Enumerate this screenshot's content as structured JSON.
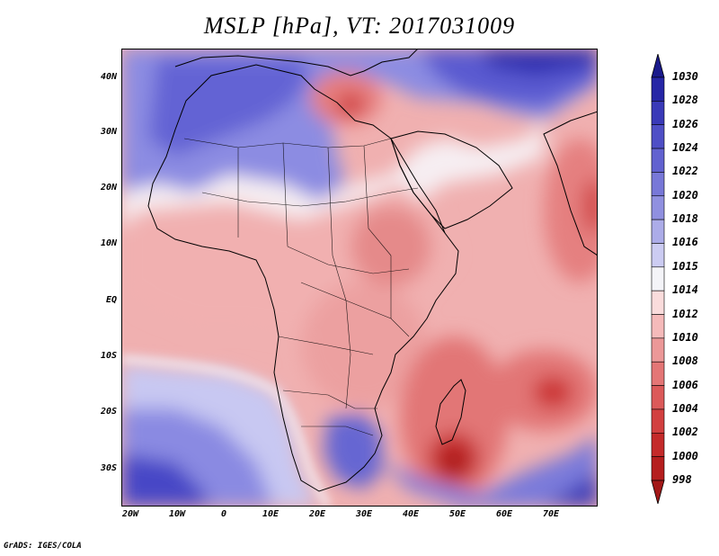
{
  "title": "MSLP [hPa], VT: 2017031009",
  "credit": "GrADS: IGES/COLA",
  "axes": {
    "lat_labels": [
      "40N",
      "30N",
      "20N",
      "10N",
      "EQ",
      "10S",
      "20S",
      "30S"
    ],
    "lon_labels": [
      "20W",
      "10W",
      "0",
      "10E",
      "20E",
      "30E",
      "40E",
      "50E",
      "60E",
      "70E"
    ]
  },
  "colorbar": {
    "levels": [
      "1030",
      "1028",
      "1026",
      "1024",
      "1022",
      "1020",
      "1018",
      "1016",
      "1015",
      "1014",
      "1012",
      "1010",
      "1008",
      "1006",
      "1004",
      "1002",
      "1000",
      "998"
    ],
    "colors": [
      "#1a1a8c",
      "#2626a6",
      "#3a3ab8",
      "#4f4fc6",
      "#6262d0",
      "#7878d8",
      "#9090e0",
      "#acace8",
      "#ccccf2",
      "#f4f4f8",
      "#fadcdc",
      "#f5baba",
      "#ec9898",
      "#e47676",
      "#dc5a5a",
      "#d24040",
      "#c42a2a",
      "#b51e1e",
      "#a31818"
    ]
  },
  "palette": {
    "ocean_base": "#f1b1b0",
    "high_strong": "#4a4ad0",
    "high_mid": "#8a8ae2",
    "high_light": "#c8c8f2",
    "neutral": "#f6f0f4",
    "low_light": "#f3bcbc",
    "low_mid": "#e68484",
    "low_strong": "#cc3434",
    "low_deep": "#a81a1a"
  }
}
